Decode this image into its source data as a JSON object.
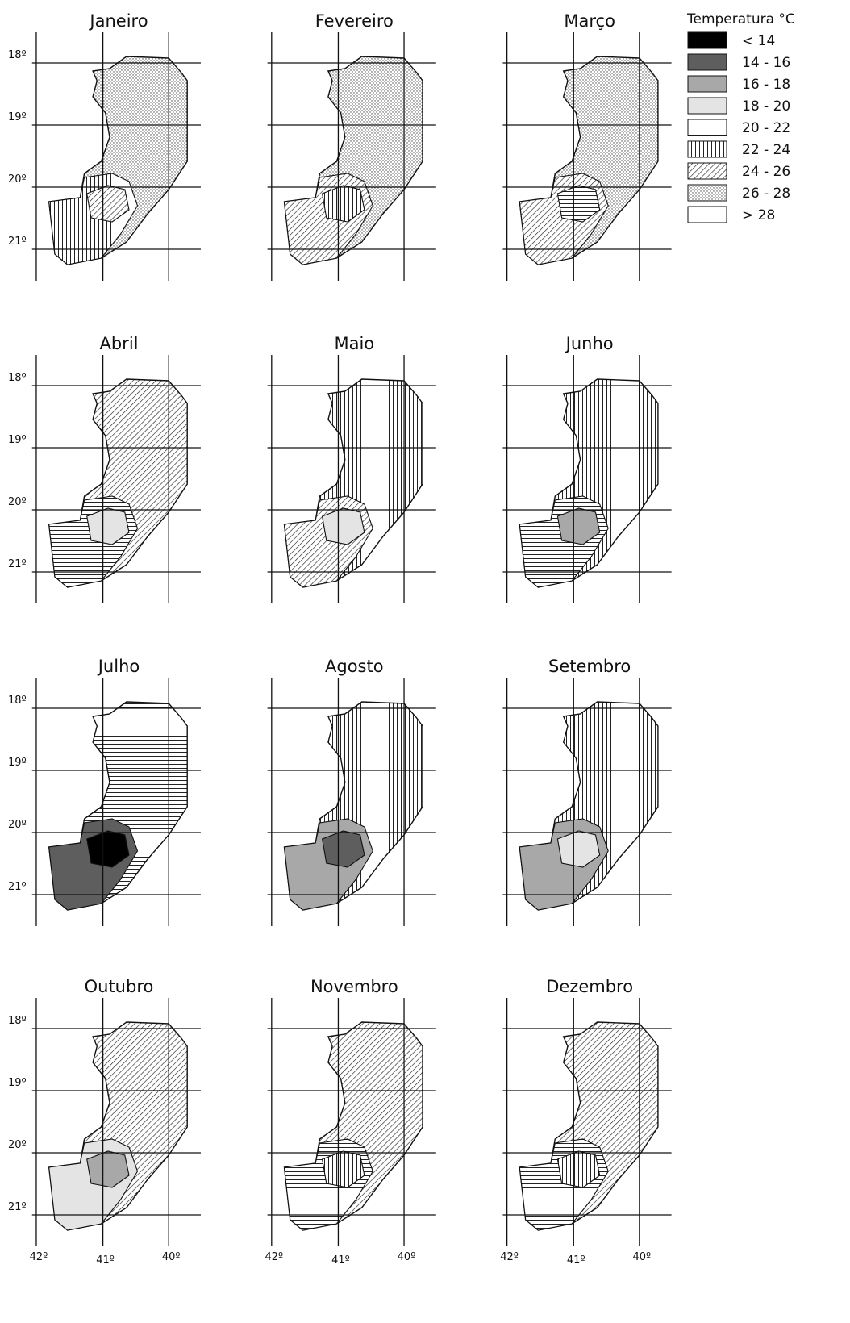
{
  "legend": {
    "title": "Temperatura °C",
    "items": [
      "< 14",
      "14 - 16",
      "16 - 18",
      "18 - 20",
      "20 - 22",
      "22 - 24",
      "24 - 26",
      "26 - 28",
      "> 28"
    ]
  },
  "panels": [
    {
      "title": "Janeiro"
    },
    {
      "title": "Fevereiro"
    },
    {
      "title": "Março"
    },
    {
      "title": "Abril"
    },
    {
      "title": "Maio"
    },
    {
      "title": "Junho"
    },
    {
      "title": "Julho"
    },
    {
      "title": "Agosto"
    },
    {
      "title": "Setembro"
    },
    {
      "title": "Outubro"
    },
    {
      "title": "Novembro"
    },
    {
      "title": "Dezembro"
    }
  ],
  "lat_labels": [
    "18º",
    "19º",
    "20º",
    "21º"
  ],
  "lon_labels": [
    "42º",
    "41º",
    "40º"
  ]
}
